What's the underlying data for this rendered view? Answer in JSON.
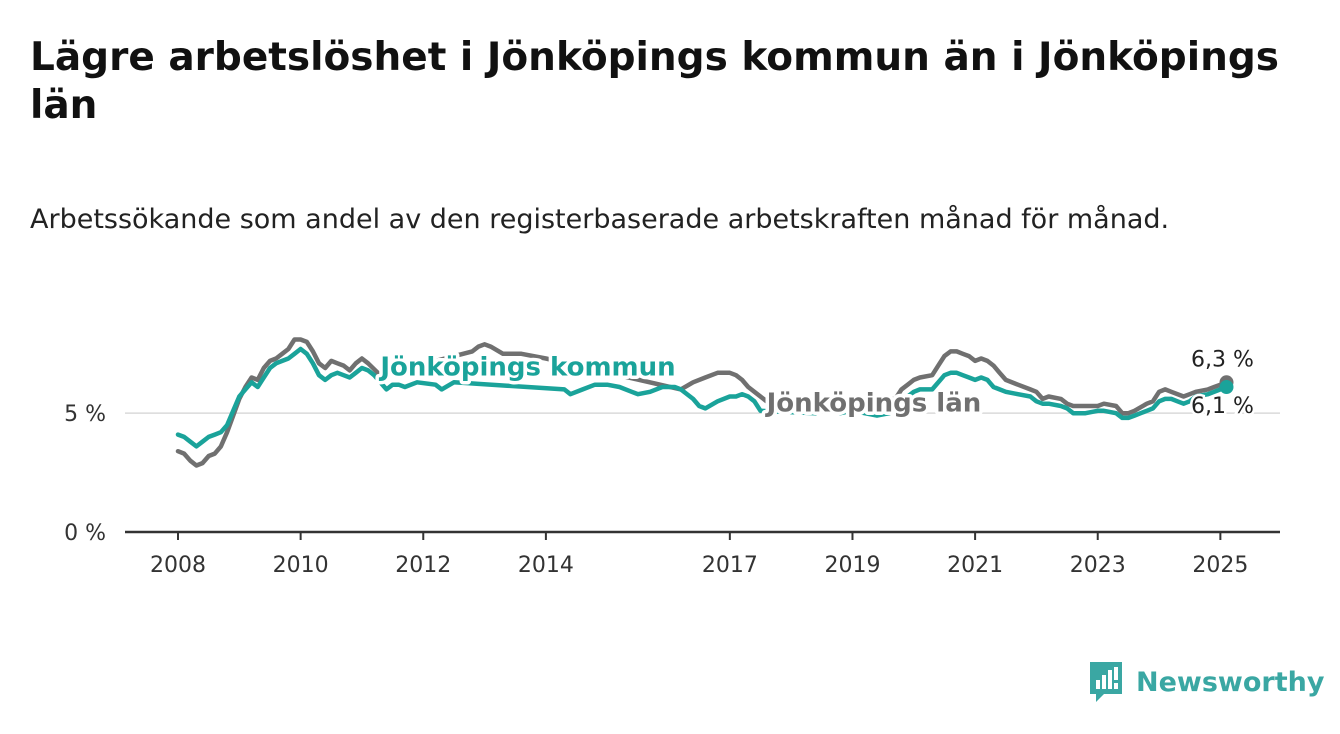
{
  "title": "Lägre arbetslöshet i Jönköpings kommun än i Jönköpings län",
  "subtitle": "Arbetssökande som andel av den registerbaserade arbetskraften månad för månad.",
  "brand": {
    "name": "Newsworthy",
    "icon": "newsworthy-bar-chart-icon",
    "color": "#3aa7a3"
  },
  "chart_data": {
    "type": "line",
    "xlabel": "",
    "ylabel": "",
    "xlim": [
      2008.0,
      2025.1
    ],
    "ylim": [
      0,
      8.5
    ],
    "y_ticks": [
      {
        "value": 0,
        "label": "0 %"
      },
      {
        "value": 5,
        "label": "5 %"
      }
    ],
    "x_ticks": [
      {
        "value": 2008,
        "label": "2008"
      },
      {
        "value": 2010,
        "label": "2010"
      },
      {
        "value": 2012,
        "label": "2012"
      },
      {
        "value": 2014,
        "label": "2014"
      },
      {
        "value": 2017,
        "label": "2017"
      },
      {
        "value": 2019,
        "label": "2019"
      },
      {
        "value": 2021,
        "label": "2021"
      },
      {
        "value": 2023,
        "label": "2023"
      },
      {
        "value": 2025,
        "label": "2025"
      }
    ],
    "grid": "horizontal",
    "series": [
      {
        "name": "Jönköpings län",
        "color": "#707070",
        "label_position": [
          2017.6,
          5.5
        ],
        "end_label": "6,3 %",
        "points": [
          [
            2008.0,
            3.4
          ],
          [
            2008.1,
            3.3
          ],
          [
            2008.2,
            3.0
          ],
          [
            2008.3,
            2.8
          ],
          [
            2008.4,
            2.9
          ],
          [
            2008.5,
            3.2
          ],
          [
            2008.6,
            3.3
          ],
          [
            2008.7,
            3.6
          ],
          [
            2008.8,
            4.2
          ],
          [
            2008.9,
            4.9
          ],
          [
            2009.0,
            5.6
          ],
          [
            2009.1,
            6.1
          ],
          [
            2009.2,
            6.5
          ],
          [
            2009.3,
            6.4
          ],
          [
            2009.4,
            6.9
          ],
          [
            2009.5,
            7.2
          ],
          [
            2009.6,
            7.3
          ],
          [
            2009.7,
            7.5
          ],
          [
            2009.8,
            7.7
          ],
          [
            2009.9,
            8.1
          ],
          [
            2010.0,
            8.1
          ],
          [
            2010.1,
            8.0
          ],
          [
            2010.2,
            7.6
          ],
          [
            2010.3,
            7.1
          ],
          [
            2010.4,
            6.9
          ],
          [
            2010.5,
            7.2
          ],
          [
            2010.6,
            7.1
          ],
          [
            2010.7,
            7.0
          ],
          [
            2010.8,
            6.8
          ],
          [
            2010.9,
            7.1
          ],
          [
            2011.0,
            7.3
          ],
          [
            2011.1,
            7.1
          ],
          [
            2011.3,
            6.6
          ],
          [
            2012.8,
            7.6
          ],
          [
            2012.9,
            7.8
          ],
          [
            2013.0,
            7.9
          ],
          [
            2013.1,
            7.8
          ],
          [
            2013.3,
            7.5
          ],
          [
            2013.6,
            7.5
          ],
          [
            2014.0,
            7.3
          ],
          [
            2016.2,
            6.0
          ],
          [
            2016.4,
            6.3
          ],
          [
            2016.6,
            6.5
          ],
          [
            2016.8,
            6.7
          ],
          [
            2017.0,
            6.7
          ],
          [
            2017.1,
            6.6
          ],
          [
            2017.2,
            6.4
          ],
          [
            2017.3,
            6.1
          ],
          [
            2017.6,
            5.5
          ],
          [
            2019.7,
            5.6
          ],
          [
            2019.8,
            6.0
          ],
          [
            2019.9,
            6.2
          ],
          [
            2020.0,
            6.4
          ],
          [
            2020.1,
            6.5
          ],
          [
            2020.3,
            6.6
          ],
          [
            2020.4,
            7.0
          ],
          [
            2020.5,
            7.4
          ],
          [
            2020.6,
            7.6
          ],
          [
            2020.7,
            7.6
          ],
          [
            2020.8,
            7.5
          ],
          [
            2020.9,
            7.4
          ],
          [
            2021.0,
            7.2
          ],
          [
            2021.1,
            7.3
          ],
          [
            2021.2,
            7.2
          ],
          [
            2021.3,
            7.0
          ],
          [
            2021.4,
            6.7
          ],
          [
            2021.5,
            6.4
          ],
          [
            2021.7,
            6.2
          ],
          [
            2021.9,
            6.0
          ],
          [
            2022.0,
            5.9
          ],
          [
            2022.1,
            5.6
          ],
          [
            2022.2,
            5.7
          ],
          [
            2022.4,
            5.6
          ],
          [
            2022.5,
            5.4
          ],
          [
            2022.6,
            5.3
          ],
          [
            2022.8,
            5.3
          ],
          [
            2023.0,
            5.3
          ],
          [
            2023.1,
            5.4
          ],
          [
            2023.3,
            5.3
          ],
          [
            2023.4,
            5.0
          ],
          [
            2023.5,
            5.0
          ],
          [
            2023.6,
            5.1
          ],
          [
            2023.8,
            5.4
          ],
          [
            2023.9,
            5.5
          ],
          [
            2024.0,
            5.9
          ],
          [
            2024.1,
            6.0
          ],
          [
            2024.2,
            5.9
          ],
          [
            2024.4,
            5.7
          ],
          [
            2024.5,
            5.8
          ],
          [
            2024.6,
            5.9
          ],
          [
            2024.8,
            6.0
          ],
          [
            2024.9,
            6.1
          ],
          [
            2025.0,
            6.2
          ],
          [
            2025.1,
            6.3
          ]
        ]
      },
      {
        "name": "Jönköpings kommun",
        "color": "#1aa39a",
        "label_position": [
          2011.3,
          7.0
        ],
        "end_label": "6,1 %",
        "points": [
          [
            2008.0,
            4.1
          ],
          [
            2008.1,
            4.0
          ],
          [
            2008.2,
            3.8
          ],
          [
            2008.3,
            3.6
          ],
          [
            2008.4,
            3.8
          ],
          [
            2008.5,
            4.0
          ],
          [
            2008.6,
            4.1
          ],
          [
            2008.7,
            4.2
          ],
          [
            2008.8,
            4.5
          ],
          [
            2008.9,
            5.1
          ],
          [
            2009.0,
            5.7
          ],
          [
            2009.1,
            6.0
          ],
          [
            2009.2,
            6.3
          ],
          [
            2009.3,
            6.1
          ],
          [
            2009.4,
            6.5
          ],
          [
            2009.5,
            6.9
          ],
          [
            2009.6,
            7.1
          ],
          [
            2009.7,
            7.2
          ],
          [
            2009.8,
            7.3
          ],
          [
            2009.9,
            7.5
          ],
          [
            2010.0,
            7.7
          ],
          [
            2010.1,
            7.5
          ],
          [
            2010.2,
            7.1
          ],
          [
            2010.3,
            6.6
          ],
          [
            2010.4,
            6.4
          ],
          [
            2010.5,
            6.6
          ],
          [
            2010.6,
            6.7
          ],
          [
            2010.7,
            6.6
          ],
          [
            2010.8,
            6.5
          ],
          [
            2010.9,
            6.7
          ],
          [
            2011.0,
            6.9
          ],
          [
            2011.1,
            6.8
          ],
          [
            2011.2,
            6.6
          ],
          [
            2011.3,
            6.3
          ],
          [
            2011.4,
            6.0
          ],
          [
            2011.5,
            6.2
          ],
          [
            2011.6,
            6.2
          ],
          [
            2011.7,
            6.1
          ],
          [
            2011.9,
            6.3
          ],
          [
            2012.2,
            6.2
          ],
          [
            2012.3,
            6.0
          ],
          [
            2012.5,
            6.3
          ],
          [
            2014.3,
            6.0
          ],
          [
            2014.4,
            5.8
          ],
          [
            2014.6,
            6.0
          ],
          [
            2014.8,
            6.2
          ],
          [
            2015.0,
            6.2
          ],
          [
            2015.2,
            6.1
          ],
          [
            2015.4,
            5.9
          ],
          [
            2015.5,
            5.8
          ],
          [
            2015.7,
            5.9
          ],
          [
            2015.9,
            6.1
          ],
          [
            2016.1,
            6.1
          ],
          [
            2016.2,
            6.0
          ],
          [
            2016.4,
            5.6
          ],
          [
            2016.5,
            5.3
          ],
          [
            2016.6,
            5.2
          ],
          [
            2016.8,
            5.5
          ],
          [
            2017.0,
            5.7
          ],
          [
            2017.1,
            5.7
          ],
          [
            2017.2,
            5.8
          ],
          [
            2017.3,
            5.7
          ],
          [
            2017.4,
            5.5
          ],
          [
            2017.5,
            5.1
          ],
          [
            2018.4,
            5.0
          ],
          [
            2018.6,
            5.2
          ],
          [
            2018.8,
            5.0
          ],
          [
            2019.0,
            5.1
          ],
          [
            2019.2,
            5.0
          ],
          [
            2019.4,
            4.9
          ],
          [
            2019.6,
            5.0
          ],
          [
            2019.8,
            5.4
          ],
          [
            2019.9,
            5.7
          ],
          [
            2020.0,
            5.9
          ],
          [
            2020.1,
            6.0
          ],
          [
            2020.3,
            6.0
          ],
          [
            2020.4,
            6.3
          ],
          [
            2020.5,
            6.6
          ],
          [
            2020.6,
            6.7
          ],
          [
            2020.7,
            6.7
          ],
          [
            2020.8,
            6.6
          ],
          [
            2020.9,
            6.5
          ],
          [
            2021.0,
            6.4
          ],
          [
            2021.1,
            6.5
          ],
          [
            2021.2,
            6.4
          ],
          [
            2021.3,
            6.1
          ],
          [
            2021.4,
            6.0
          ],
          [
            2021.5,
            5.9
          ],
          [
            2021.7,
            5.8
          ],
          [
            2021.9,
            5.7
          ],
          [
            2022.0,
            5.5
          ],
          [
            2022.1,
            5.4
          ],
          [
            2022.2,
            5.4
          ],
          [
            2022.4,
            5.3
          ],
          [
            2022.5,
            5.2
          ],
          [
            2022.6,
            5.0
          ],
          [
            2022.8,
            5.0
          ],
          [
            2023.0,
            5.1
          ],
          [
            2023.1,
            5.1
          ],
          [
            2023.3,
            5.0
          ],
          [
            2023.4,
            4.8
          ],
          [
            2023.5,
            4.8
          ],
          [
            2023.6,
            4.9
          ],
          [
            2023.8,
            5.1
          ],
          [
            2023.9,
            5.2
          ],
          [
            2024.0,
            5.5
          ],
          [
            2024.1,
            5.6
          ],
          [
            2024.2,
            5.6
          ],
          [
            2024.3,
            5.5
          ],
          [
            2024.4,
            5.4
          ],
          [
            2024.5,
            5.5
          ],
          [
            2024.6,
            5.7
          ],
          [
            2024.8,
            5.8
          ],
          [
            2024.9,
            5.9
          ],
          [
            2025.0,
            6.0
          ],
          [
            2025.1,
            6.1
          ]
        ]
      }
    ]
  }
}
